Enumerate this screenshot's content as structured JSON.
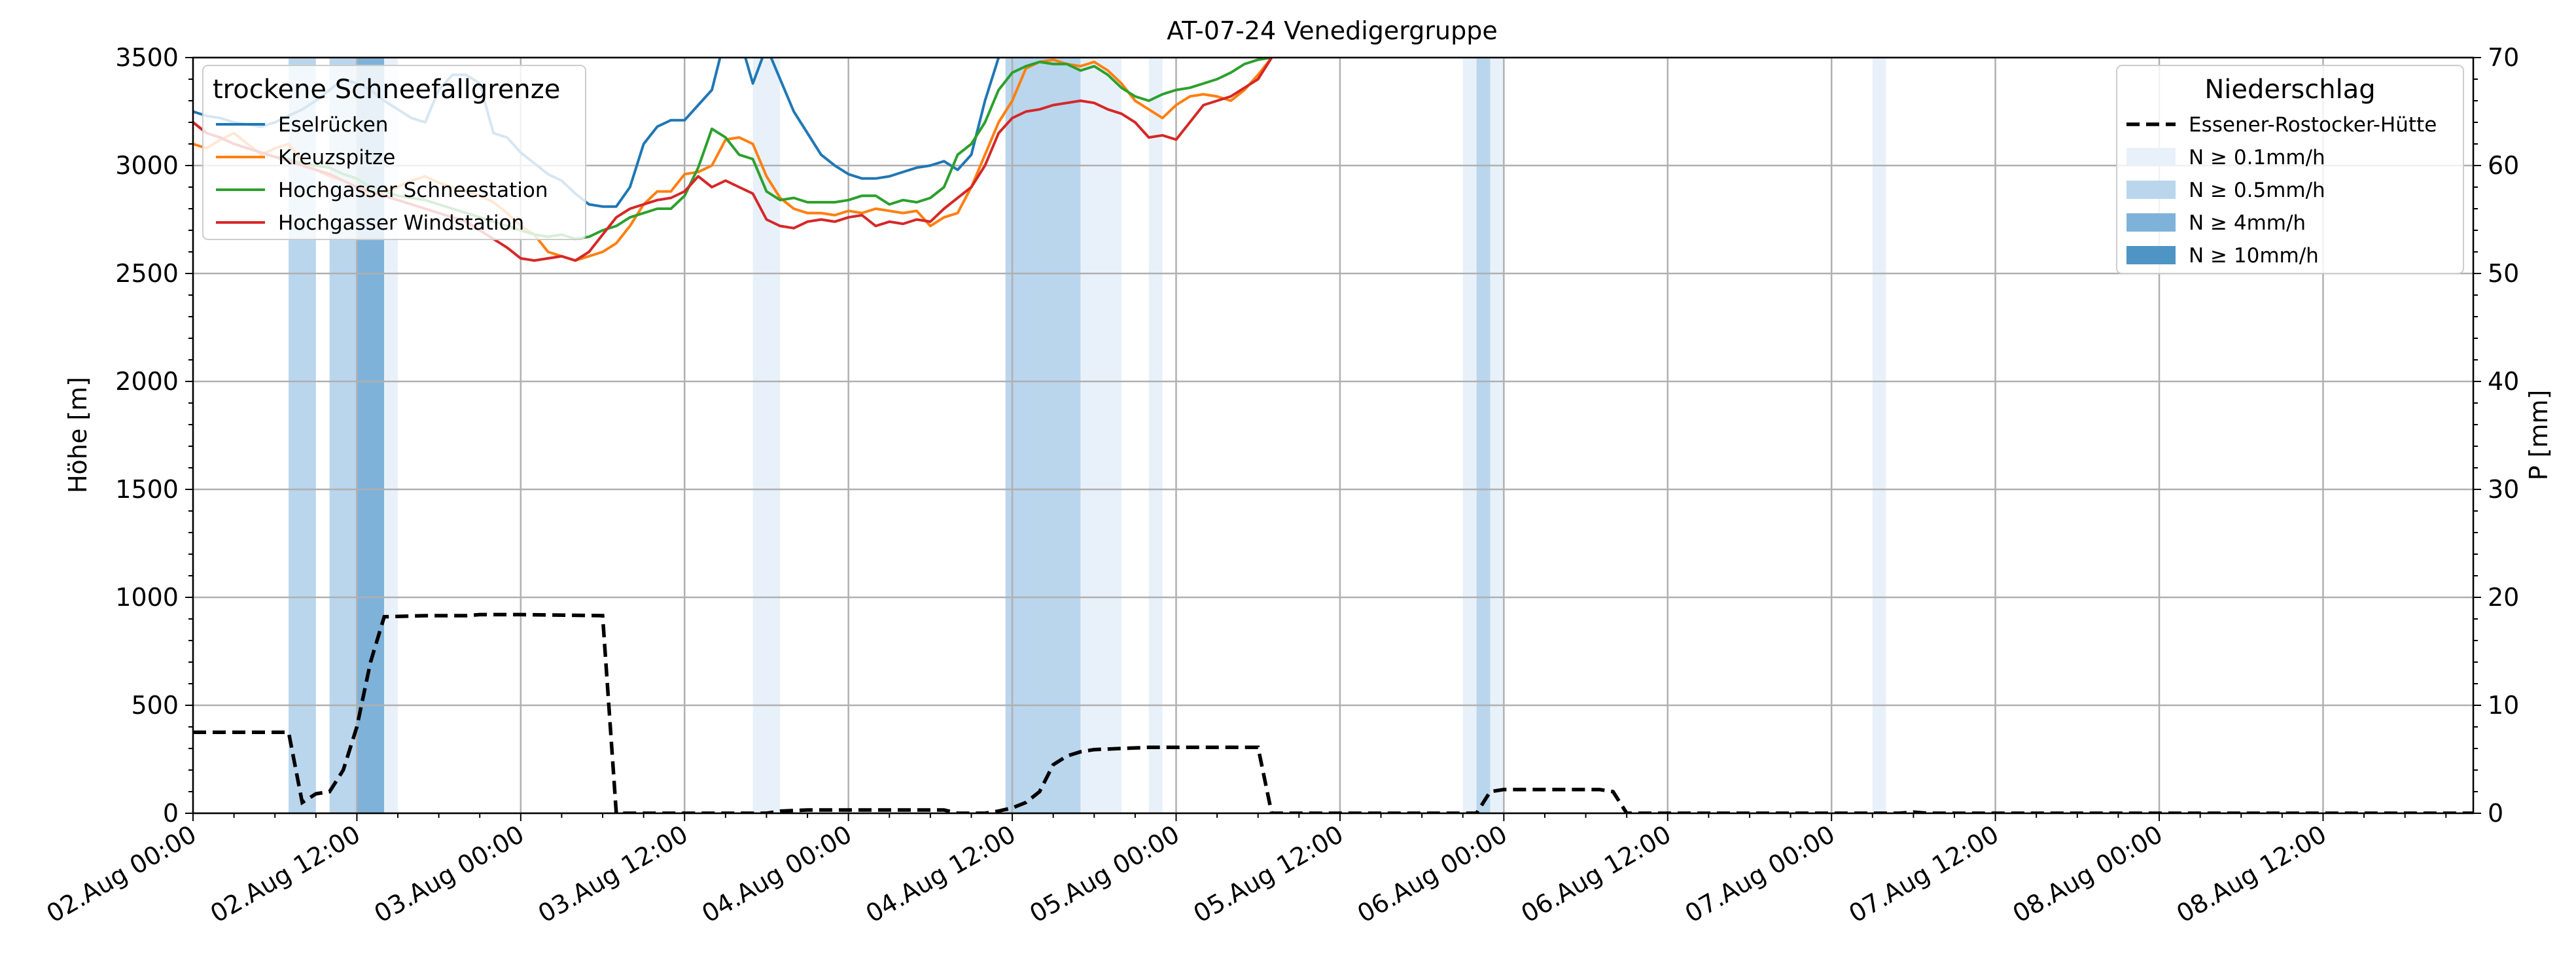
{
  "chart_data": {
    "type": "line",
    "title": "AT-07-24 Venedigergruppe",
    "ylabel_left": "Höhe [m]",
    "ylabel_right": "P [mm]",
    "xlim_hours": [
      0,
      167
    ],
    "ylim_left": [
      0,
      3500
    ],
    "ylim_right": [
      0,
      70
    ],
    "grid": true,
    "x_tick_labels": [
      "02.Aug 00:00",
      "02.Aug 12:00",
      "03.Aug 00:00",
      "03.Aug 12:00",
      "04.Aug 00:00",
      "04.Aug 12:00",
      "05.Aug 00:00",
      "05.Aug 12:00",
      "06.Aug 00:00",
      "06.Aug 12:00",
      "07.Aug 00:00",
      "07.Aug 12:00",
      "08.Aug 00:00",
      "08.Aug 12:00"
    ],
    "y_left_ticks": [
      0,
      500,
      1000,
      1500,
      2000,
      2500,
      3000,
      3500
    ],
    "y_right_ticks": [
      0,
      10,
      20,
      30,
      40,
      50,
      60,
      70
    ],
    "legend_snow": {
      "title": "trockene Schneefallgrenze",
      "position": "top-left",
      "series": [
        {
          "name": "Eselrücken",
          "color": "#1f77b4",
          "x": [
            0,
            1,
            2,
            3,
            4,
            5,
            6,
            7,
            8,
            9,
            10,
            11,
            12,
            13,
            14,
            15,
            16,
            17,
            18,
            19,
            20,
            21,
            22,
            23,
            24,
            25,
            26,
            27,
            28,
            29,
            30,
            31,
            32,
            33,
            34,
            35,
            36,
            37,
            38,
            39,
            40,
            41,
            42,
            43,
            44,
            45,
            46,
            47,
            48,
            49,
            50,
            51,
            52,
            53,
            54,
            55,
            56,
            57,
            58,
            59
          ],
          "y": [
            3250,
            3230,
            3220,
            3200,
            3190,
            3180,
            3200,
            3230,
            3260,
            3300,
            3350,
            3400,
            3380,
            3350,
            3300,
            3260,
            3220,
            3200,
            3350,
            3420,
            3420,
            3380,
            3150,
            3130,
            3060,
            3010,
            2960,
            2930,
            2870,
            2820,
            2810,
            2810,
            2900,
            3100,
            3180,
            3210,
            3210,
            3280,
            3350,
            3600,
            3600,
            3380,
            3550,
            3400,
            3250,
            3150,
            3050,
            3000,
            2960,
            2940,
            2940,
            2950,
            2970,
            2990,
            3000,
            3020,
            2980,
            3050,
            3300,
            3500
          ]
        },
        {
          "name": "Kreuzspitze",
          "color": "#ff7f0e",
          "x": [
            0,
            1,
            2,
            3,
            4,
            5,
            6,
            7,
            8,
            9,
            10,
            11,
            12,
            13,
            14,
            15,
            16,
            17,
            18,
            19,
            20,
            21,
            22,
            23,
            24,
            25,
            26,
            27,
            28,
            29,
            30,
            31,
            32,
            33,
            34,
            35,
            36,
            37,
            38,
            39,
            40,
            41,
            42,
            43,
            44,
            45,
            46,
            47,
            48,
            49,
            50,
            51,
            52,
            53,
            54,
            55,
            56,
            57,
            58,
            59,
            60,
            61,
            62,
            63,
            64,
            65,
            66,
            67,
            68,
            69,
            70,
            71,
            72,
            73,
            74,
            75,
            76,
            77,
            78,
            79
          ],
          "y": [
            3100,
            3080,
            3120,
            3150,
            3100,
            3050,
            3080,
            3100,
            3020,
            2980,
            2950,
            2930,
            2900,
            2850,
            2880,
            2900,
            2930,
            2950,
            2920,
            2900,
            2880,
            2860,
            2830,
            2780,
            2720,
            2680,
            2600,
            2580,
            2560,
            2580,
            2600,
            2640,
            2720,
            2820,
            2880,
            2880,
            2960,
            2970,
            3000,
            3120,
            3130,
            3100,
            2950,
            2850,
            2800,
            2780,
            2780,
            2770,
            2790,
            2780,
            2800,
            2790,
            2780,
            2790,
            2720,
            2760,
            2780,
            2900,
            3050,
            3200,
            3300,
            3450,
            3480,
            3490,
            3470,
            3460,
            3480,
            3440,
            3380,
            3300,
            3260,
            3220,
            3280,
            3320,
            3330,
            3320,
            3300,
            3350,
            3420,
            3500
          ]
        },
        {
          "name": "Hochgasser Schneestation",
          "color": "#2ca02c",
          "x": [
            0,
            1,
            2,
            3,
            4,
            5,
            6,
            7,
            8,
            9,
            10,
            11,
            12,
            13,
            14,
            15,
            16,
            17,
            18,
            19,
            20,
            21,
            22,
            23,
            24,
            25,
            26,
            27,
            28,
            29,
            30,
            31,
            32,
            33,
            34,
            35,
            36,
            37,
            38,
            39,
            40,
            41,
            42,
            43,
            44,
            45,
            46,
            47,
            48,
            49,
            50,
            51,
            52,
            53,
            54,
            55,
            56,
            57,
            58,
            59,
            60,
            61,
            62,
            63,
            64,
            65,
            66,
            67,
            68,
            69,
            70,
            71,
            72,
            73,
            74,
            75,
            76,
            77,
            78,
            79
          ],
          "y": [
            3200,
            3150,
            3130,
            3100,
            3080,
            3060,
            3040,
            3030,
            3010,
            3000,
            2990,
            2960,
            2940,
            2900,
            2880,
            2860,
            2850,
            2840,
            2820,
            2800,
            2780,
            2760,
            2740,
            2720,
            2700,
            2680,
            2670,
            2680,
            2660,
            2670,
            2700,
            2720,
            2760,
            2780,
            2800,
            2800,
            2860,
            2990,
            3170,
            3130,
            3050,
            3030,
            2880,
            2840,
            2850,
            2830,
            2830,
            2830,
            2840,
            2860,
            2860,
            2820,
            2840,
            2830,
            2850,
            2900,
            3050,
            3100,
            3200,
            3350,
            3430,
            3460,
            3480,
            3470,
            3470,
            3440,
            3460,
            3420,
            3360,
            3320,
            3300,
            3330,
            3350,
            3360,
            3380,
            3400,
            3430,
            3470,
            3490,
            3500
          ]
        },
        {
          "name": "Hochgasser Windstation",
          "color": "#d62728",
          "x": [
            0,
            1,
            2,
            3,
            4,
            5,
            6,
            7,
            8,
            9,
            10,
            11,
            12,
            13,
            14,
            15,
            16,
            17,
            18,
            19,
            20,
            21,
            22,
            23,
            24,
            25,
            26,
            27,
            28,
            29,
            30,
            31,
            32,
            33,
            34,
            35,
            36,
            37,
            38,
            39,
            40,
            41,
            42,
            43,
            44,
            45,
            46,
            47,
            48,
            49,
            50,
            51,
            52,
            53,
            54,
            55,
            56,
            57,
            58,
            59,
            60,
            61,
            62,
            63,
            64,
            65,
            66,
            67,
            68,
            69,
            70,
            71,
            72,
            73,
            74,
            75,
            76,
            77,
            78,
            79
          ],
          "y": [
            3200,
            3150,
            3130,
            3100,
            3080,
            3060,
            3040,
            3020,
            3000,
            2980,
            2960,
            2930,
            2900,
            2880,
            2860,
            2840,
            2820,
            2800,
            2780,
            2760,
            2740,
            2700,
            2660,
            2620,
            2570,
            2560,
            2570,
            2580,
            2560,
            2600,
            2680,
            2760,
            2800,
            2820,
            2840,
            2850,
            2880,
            2950,
            2900,
            2930,
            2900,
            2870,
            2750,
            2720,
            2710,
            2740,
            2750,
            2740,
            2760,
            2770,
            2720,
            2740,
            2730,
            2750,
            2740,
            2800,
            2850,
            2900,
            3000,
            3150,
            3220,
            3250,
            3260,
            3280,
            3290,
            3300,
            3290,
            3260,
            3240,
            3200,
            3130,
            3140,
            3120,
            3200,
            3280,
            3300,
            3320,
            3360,
            3400,
            3500
          ]
        }
      ]
    },
    "legend_precip": {
      "title": "Niederschlag",
      "position": "top-right",
      "series": [
        {
          "name": "Essener-Rostocker-Hütte",
          "color": "#000000",
          "dash": true,
          "x": [
            0,
            7,
            8,
            9,
            10,
            11,
            12,
            13,
            14,
            17,
            20,
            21,
            24,
            30,
            31,
            32,
            36,
            42,
            43,
            45,
            55,
            56,
            58,
            59,
            60,
            61,
            62,
            63,
            64,
            65,
            66,
            70,
            75,
            78,
            79,
            80,
            90,
            94,
            95,
            96,
            103,
            104,
            105,
            124,
            125,
            126,
            127,
            167
          ],
          "y": [
            7.5,
            7.5,
            1,
            1.8,
            2,
            4,
            8,
            14,
            18.2,
            18.3,
            18.3,
            18.4,
            18.4,
            18.3,
            0,
            0,
            0,
            0,
            0.2,
            0.3,
            0.3,
            0,
            0,
            0.2,
            0.5,
            1,
            2,
            4.5,
            5.3,
            5.7,
            5.9,
            6.1,
            6.1,
            6.1,
            0,
            0,
            0,
            0,
            2,
            2.2,
            2.2,
            2,
            0,
            0,
            0,
            0.1,
            0,
            0
          ]
        }
      ],
      "bands": [
        {
          "name": "N ≥ 0.1mm/h",
          "color": "#e8f1fa"
        },
        {
          "name": "N ≥ 0.5mm/h",
          "color": "#b9d6ed"
        },
        {
          "name": "N ≥ 4mm/h",
          "color": "#7fb2d9"
        },
        {
          "name": "N ≥ 10mm/h",
          "color": "#4e94c4"
        }
      ]
    },
    "precip_intervals": [
      {
        "x0": 7,
        "x1": 9,
        "level": 1
      },
      {
        "x0": 10,
        "x1": 12,
        "level": 1
      },
      {
        "x0": 12,
        "x1": 14,
        "level": 2
      },
      {
        "x0": 14,
        "x1": 15,
        "level": 0
      },
      {
        "x0": 41,
        "x1": 43,
        "level": 0
      },
      {
        "x0": 59.5,
        "x1": 61,
        "level": 1
      },
      {
        "x0": 61,
        "x1": 65,
        "level": 1
      },
      {
        "x0": 65,
        "x1": 68,
        "level": 0
      },
      {
        "x0": 70,
        "x1": 71,
        "level": 0
      },
      {
        "x0": 93,
        "x1": 94,
        "level": 0
      },
      {
        "x0": 94,
        "x1": 95,
        "level": 1
      },
      {
        "x0": 95,
        "x1": 96,
        "level": 0
      },
      {
        "x0": 123,
        "x1": 124,
        "level": 0
      }
    ]
  }
}
